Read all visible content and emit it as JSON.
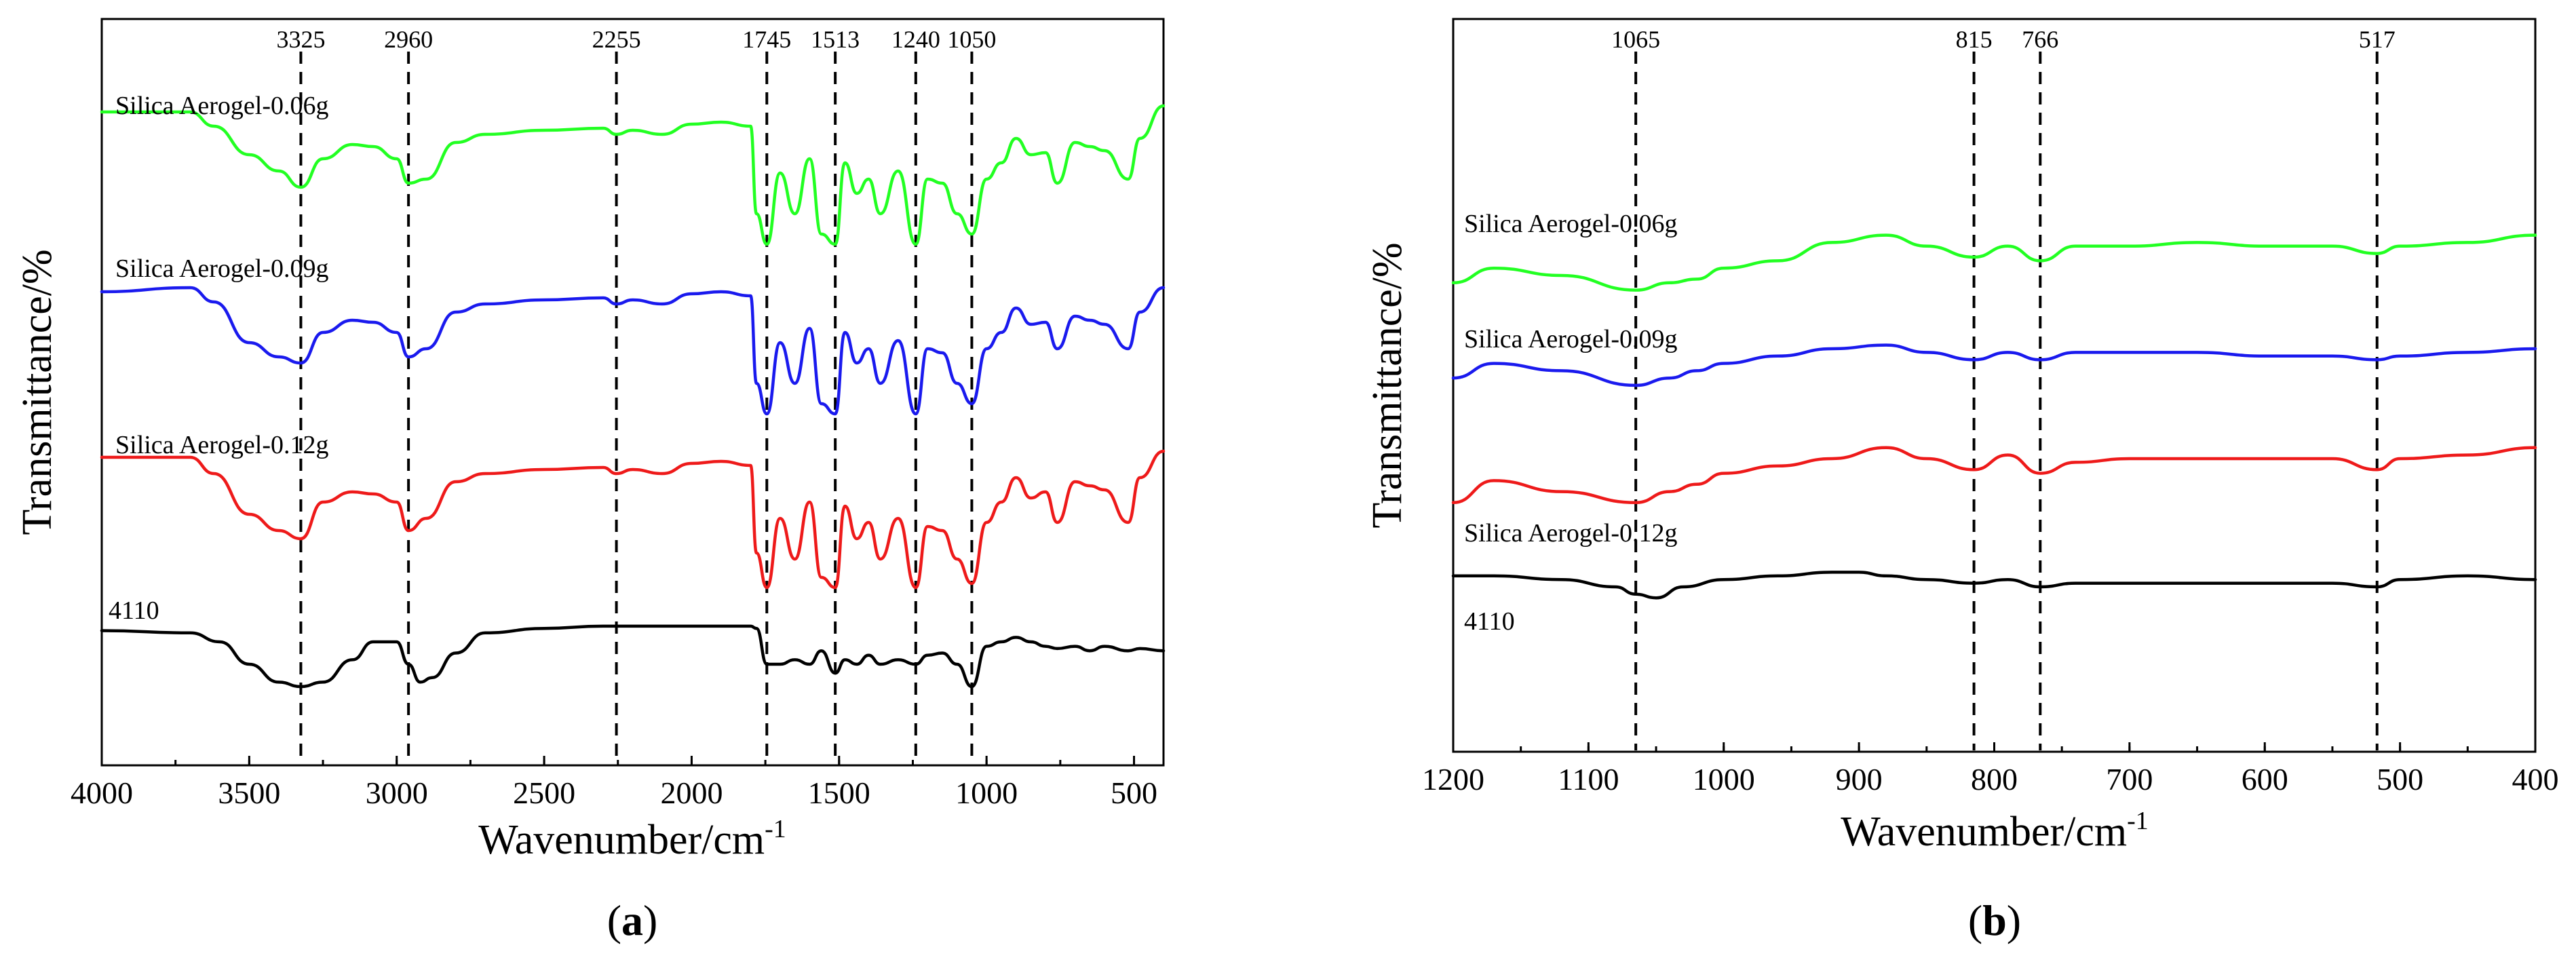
{
  "chart_data": [
    {
      "type": "line",
      "panel": "a",
      "panel_label_open": "(",
      "panel_label_letter": "a",
      "panel_label_close": ")",
      "xlabel": "Wavenumber/cm",
      "xlabel_sup": "-1",
      "ylabel": "Transmittance/%",
      "xlim": [
        4000,
        400
      ],
      "x_reversed": true,
      "xticks": [
        4000,
        3500,
        3000,
        2500,
        2000,
        1500,
        1000,
        500
      ],
      "grid": false,
      "peak_markers": [
        3325,
        2960,
        2255,
        1745,
        1513,
        1240,
        1050
      ],
      "peak_labels": [
        "3325",
        "2960",
        "2255",
        "1745",
        "1513",
        "1240",
        "1050"
      ],
      "series": [
        {
          "name": "Silica Aerogel-0.06g",
          "color": "#22ff22",
          "offset": 3,
          "amp": 1.0,
          "x": [
            4000,
            3700,
            3620,
            3500,
            3400,
            3325,
            3250,
            3150,
            3080,
            3000,
            2960,
            2900,
            2800,
            2700,
            2500,
            2300,
            2255,
            2200,
            2100,
            2000,
            1900,
            1800,
            1780,
            1745,
            1700,
            1650,
            1600,
            1560,
            1513,
            1480,
            1440,
            1400,
            1360,
            1300,
            1240,
            1200,
            1150,
            1100,
            1050,
            1000,
            950,
            900,
            850,
            800,
            760,
            700,
            650,
            600,
            520,
            480,
            400
          ],
          "y": [
            0.95,
            0.95,
            0.88,
            0.74,
            0.66,
            0.58,
            0.72,
            0.79,
            0.78,
            0.72,
            0.6,
            0.62,
            0.8,
            0.84,
            0.86,
            0.87,
            0.84,
            0.86,
            0.84,
            0.89,
            0.9,
            0.88,
            0.45,
            0.3,
            0.65,
            0.45,
            0.72,
            0.35,
            0.3,
            0.7,
            0.55,
            0.62,
            0.45,
            0.66,
            0.3,
            0.62,
            0.6,
            0.45,
            0.35,
            0.62,
            0.7,
            0.82,
            0.74,
            0.75,
            0.6,
            0.8,
            0.78,
            0.76,
            0.62,
            0.82,
            0.98
          ]
        },
        {
          "name": "Silica Aerogel-0.09g",
          "color": "#1a1aee",
          "offset": 2,
          "amp": 1.0,
          "x": [
            4000,
            3700,
            3620,
            3500,
            3400,
            3325,
            3250,
            3150,
            3080,
            3000,
            2960,
            2900,
            2800,
            2700,
            2500,
            2300,
            2255,
            2200,
            2100,
            2000,
            1900,
            1800,
            1780,
            1745,
            1700,
            1650,
            1600,
            1560,
            1513,
            1480,
            1440,
            1400,
            1360,
            1300,
            1240,
            1200,
            1150,
            1100,
            1050,
            1000,
            950,
            900,
            850,
            800,
            760,
            700,
            650,
            600,
            520,
            480,
            400
          ],
          "y": [
            0.9,
            0.92,
            0.85,
            0.65,
            0.58,
            0.55,
            0.7,
            0.76,
            0.75,
            0.7,
            0.58,
            0.62,
            0.8,
            0.84,
            0.86,
            0.87,
            0.84,
            0.86,
            0.84,
            0.89,
            0.9,
            0.88,
            0.45,
            0.3,
            0.65,
            0.45,
            0.72,
            0.35,
            0.3,
            0.7,
            0.55,
            0.62,
            0.45,
            0.66,
            0.3,
            0.62,
            0.6,
            0.45,
            0.35,
            0.62,
            0.7,
            0.82,
            0.74,
            0.75,
            0.62,
            0.78,
            0.76,
            0.74,
            0.62,
            0.8,
            0.92
          ]
        },
        {
          "name": "Silica Aerogel-0.12g",
          "color": "#ee1a1a",
          "offset": 1,
          "amp": 1.0,
          "x": [
            4000,
            3700,
            3620,
            3500,
            3400,
            3325,
            3250,
            3150,
            3080,
            3000,
            2960,
            2900,
            2800,
            2700,
            2500,
            2300,
            2255,
            2200,
            2100,
            2000,
            1900,
            1800,
            1780,
            1745,
            1700,
            1650,
            1600,
            1560,
            1513,
            1480,
            1440,
            1400,
            1360,
            1300,
            1240,
            1200,
            1150,
            1100,
            1050,
            1000,
            950,
            900,
            850,
            800,
            760,
            700,
            650,
            600,
            520,
            480,
            400
          ],
          "y": [
            0.92,
            0.92,
            0.84,
            0.64,
            0.56,
            0.52,
            0.7,
            0.75,
            0.74,
            0.7,
            0.56,
            0.62,
            0.8,
            0.84,
            0.86,
            0.87,
            0.84,
            0.86,
            0.84,
            0.89,
            0.9,
            0.88,
            0.45,
            0.28,
            0.62,
            0.42,
            0.7,
            0.33,
            0.28,
            0.68,
            0.52,
            0.6,
            0.42,
            0.62,
            0.28,
            0.58,
            0.56,
            0.42,
            0.3,
            0.6,
            0.7,
            0.82,
            0.72,
            0.75,
            0.6,
            0.8,
            0.78,
            0.76,
            0.6,
            0.82,
            0.95
          ]
        },
        {
          "name": "4110",
          "color": "#000000",
          "offset": 0,
          "amp": 1.0,
          "x": [
            4000,
            3700,
            3600,
            3500,
            3400,
            3325,
            3250,
            3150,
            3080,
            3000,
            2960,
            2920,
            2880,
            2800,
            2700,
            2500,
            2300,
            2100,
            2000,
            1900,
            1800,
            1780,
            1745,
            1700,
            1650,
            1600,
            1560,
            1513,
            1480,
            1440,
            1400,
            1360,
            1300,
            1240,
            1200,
            1150,
            1100,
            1050,
            1000,
            950,
            900,
            850,
            800,
            760,
            700,
            650,
            600,
            520,
            480,
            400
          ],
          "y": [
            0.85,
            0.84,
            0.8,
            0.7,
            0.62,
            0.6,
            0.62,
            0.72,
            0.8,
            0.8,
            0.7,
            0.62,
            0.64,
            0.75,
            0.84,
            0.86,
            0.87,
            0.87,
            0.87,
            0.87,
            0.87,
            0.86,
            0.7,
            0.7,
            0.72,
            0.7,
            0.76,
            0.66,
            0.72,
            0.7,
            0.74,
            0.7,
            0.72,
            0.7,
            0.74,
            0.75,
            0.7,
            0.6,
            0.78,
            0.8,
            0.82,
            0.8,
            0.78,
            0.77,
            0.78,
            0.76,
            0.78,
            0.76,
            0.77,
            0.76
          ]
        }
      ],
      "series_label_text": [
        "Silica Aerogel-0.06g",
        "Silica Aerogel-0.09g",
        "Silica Aerogel-0.12g",
        "4110"
      ]
    },
    {
      "type": "line",
      "panel": "b",
      "panel_label_open": "(",
      "panel_label_letter": "b",
      "panel_label_close": ")",
      "xlabel": "Wavenumber/cm",
      "xlabel_sup": "-1",
      "ylabel": "Transmittance/%",
      "xlim": [
        1200,
        400
      ],
      "x_reversed": true,
      "xticks": [
        1200,
        1100,
        1000,
        900,
        800,
        700,
        600,
        500,
        400
      ],
      "grid": false,
      "peak_markers": [
        1065,
        815,
        766,
        517
      ],
      "peak_labels": [
        "1065",
        "815",
        "766",
        "517"
      ],
      "series": [
        {
          "name": "Silica Aerogel-0.06g",
          "color": "#22ff22",
          "x": [
            1200,
            1170,
            1120,
            1065,
            1040,
            1020,
            1000,
            960,
            920,
            880,
            850,
            815,
            790,
            766,
            740,
            700,
            650,
            600,
            550,
            517,
            500,
            450,
            400
          ],
          "y": [
            0.64,
            0.66,
            0.65,
            0.63,
            0.64,
            0.645,
            0.66,
            0.67,
            0.695,
            0.705,
            0.69,
            0.675,
            0.69,
            0.67,
            0.69,
            0.69,
            0.695,
            0.69,
            0.69,
            0.68,
            0.69,
            0.695,
            0.705
          ]
        },
        {
          "name": "Silica Aerogel-0.09g",
          "color": "#1a1aee",
          "x": [
            1200,
            1170,
            1120,
            1065,
            1040,
            1020,
            1000,
            960,
            920,
            880,
            850,
            815,
            790,
            766,
            740,
            700,
            650,
            600,
            550,
            517,
            500,
            450,
            400
          ],
          "y": [
            0.51,
            0.53,
            0.52,
            0.5,
            0.51,
            0.52,
            0.53,
            0.54,
            0.55,
            0.555,
            0.545,
            0.535,
            0.545,
            0.535,
            0.545,
            0.545,
            0.545,
            0.54,
            0.54,
            0.535,
            0.54,
            0.545,
            0.55
          ]
        },
        {
          "name": "Silica Aerogel-0.12g",
          "color": "#ee1a1a",
          "x": [
            1200,
            1170,
            1120,
            1065,
            1040,
            1020,
            1000,
            960,
            920,
            880,
            850,
            815,
            790,
            766,
            740,
            700,
            650,
            600,
            550,
            517,
            500,
            450,
            400
          ],
          "y": [
            0.34,
            0.37,
            0.355,
            0.34,
            0.355,
            0.365,
            0.38,
            0.39,
            0.4,
            0.415,
            0.4,
            0.385,
            0.405,
            0.38,
            0.395,
            0.4,
            0.4,
            0.4,
            0.4,
            0.385,
            0.4,
            0.405,
            0.415
          ]
        },
        {
          "name": "4110",
          "color": "#000000",
          "x": [
            1200,
            1170,
            1120,
            1080,
            1065,
            1050,
            1030,
            1000,
            960,
            920,
            900,
            880,
            850,
            815,
            790,
            766,
            740,
            700,
            650,
            600,
            550,
            517,
            500,
            450,
            400
          ],
          "y": [
            0.24,
            0.24,
            0.235,
            0.225,
            0.215,
            0.21,
            0.225,
            0.235,
            0.24,
            0.245,
            0.245,
            0.24,
            0.235,
            0.23,
            0.235,
            0.225,
            0.23,
            0.23,
            0.23,
            0.23,
            0.23,
            0.225,
            0.235,
            0.24,
            0.235
          ]
        }
      ],
      "series_label_text": [
        "Silica Aerogel-0.06g",
        "Silica Aerogel-0.09g",
        "Silica Aerogel-0.12g",
        "4110"
      ]
    }
  ]
}
